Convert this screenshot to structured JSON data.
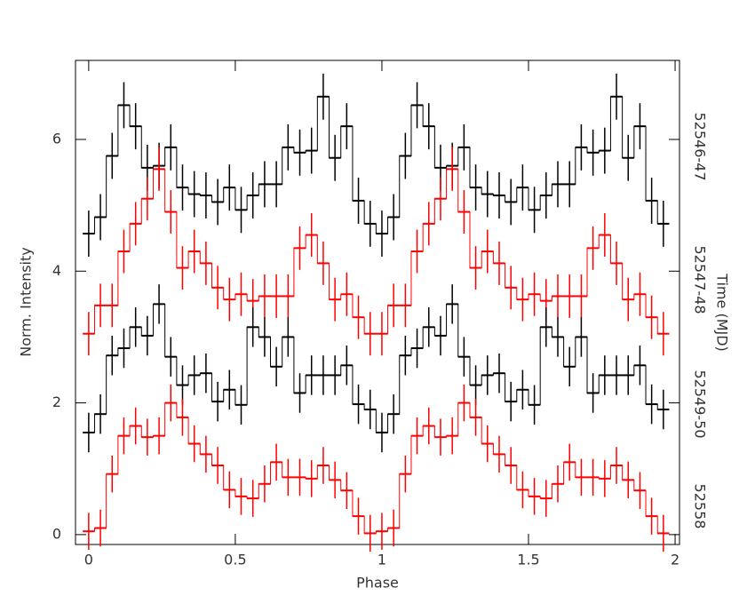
{
  "chart_data": {
    "type": "step",
    "xlabel": "Phase",
    "ylabel": "Norm. Intensity",
    "y2label": "Time (MJD)",
    "x": [
      0,
      0.04,
      0.08,
      0.12,
      0.16,
      0.2,
      0.24,
      0.28,
      0.32,
      0.36,
      0.4,
      0.44,
      0.48,
      0.52,
      0.56,
      0.6,
      0.64,
      0.68,
      0.72,
      0.76,
      0.8,
      0.84,
      0.88,
      0.92,
      0.96,
      1,
      1.04,
      1.08,
      1.12,
      1.16,
      1.2,
      1.24,
      1.28,
      1.32,
      1.36,
      1.4,
      1.44,
      1.48,
      1.52,
      1.56,
      1.6,
      1.64,
      1.68,
      1.72,
      1.76,
      1.8,
      1.84,
      1.88,
      1.92,
      1.96
    ],
    "series": [
      {
        "name": "52546-47",
        "color": "#000000",
        "error": 0.35,
        "values": [
          4.57,
          4.82,
          5.75,
          6.52,
          6.2,
          5.57,
          5.6,
          5.88,
          5.27,
          5.17,
          5.15,
          5.05,
          5.27,
          4.93,
          5.15,
          5.32,
          5.32,
          5.88,
          5.8,
          5.83,
          6.65,
          5.72,
          6.2,
          5.07,
          4.72,
          4.57,
          4.82,
          5.75,
          6.52,
          6.2,
          5.57,
          5.6,
          5.88,
          5.27,
          5.17,
          5.15,
          5.05,
          5.27,
          4.93,
          5.15,
          5.32,
          5.32,
          5.88,
          5.8,
          5.83,
          6.65,
          5.72,
          6.2,
          5.07,
          4.72
        ]
      },
      {
        "name": "52547-48",
        "color": "#ff0000",
        "error": 0.33,
        "values": [
          3.05,
          3.48,
          3.48,
          4.3,
          4.72,
          5.1,
          5.55,
          4.9,
          4.05,
          4.3,
          4.12,
          3.75,
          3.57,
          3.65,
          3.55,
          3.62,
          3.62,
          3.62,
          4.35,
          4.55,
          4.12,
          3.57,
          3.65,
          3.3,
          3.05,
          3.05,
          3.48,
          3.48,
          4.3,
          4.72,
          5.1,
          5.55,
          4.9,
          4.05,
          4.3,
          4.12,
          3.75,
          3.57,
          3.65,
          3.55,
          3.62,
          3.62,
          3.62,
          4.35,
          4.55,
          4.12,
          3.57,
          3.65,
          3.3,
          3.05
        ]
      },
      {
        "name": "52549-50",
        "color": "#000000",
        "error": 0.3,
        "values": [
          1.55,
          1.83,
          2.72,
          2.83,
          3.15,
          3.02,
          3.5,
          2.7,
          2.27,
          2.42,
          2.45,
          2.02,
          2.2,
          1.97,
          3.15,
          3.0,
          2.55,
          3.0,
          2.15,
          2.42,
          2.42,
          2.42,
          2.57,
          1.98,
          1.9,
          1.55,
          1.83,
          2.72,
          2.83,
          3.15,
          3.02,
          3.5,
          2.7,
          2.27,
          2.42,
          2.45,
          2.02,
          2.2,
          1.97,
          3.15,
          3.0,
          2.55,
          3.0,
          2.15,
          2.42,
          2.42,
          2.42,
          2.57,
          1.98,
          1.9
        ]
      },
      {
        "name": "52558",
        "color": "#ff0000",
        "error": 0.28,
        "values": [
          0.05,
          0.1,
          0.92,
          1.5,
          1.65,
          1.48,
          1.5,
          2.0,
          1.78,
          1.38,
          1.22,
          1.05,
          0.68,
          0.58,
          0.55,
          0.77,
          1.1,
          0.87,
          0.87,
          0.85,
          1.05,
          0.83,
          0.67,
          0.28,
          0.02,
          0.05,
          0.1,
          0.92,
          1.5,
          1.65,
          1.48,
          1.5,
          2.0,
          1.78,
          1.38,
          1.22,
          1.05,
          0.68,
          0.58,
          0.55,
          0.77,
          1.1,
          0.87,
          0.87,
          0.85,
          1.05,
          0.83,
          0.67,
          0.28,
          0.02
        ]
      }
    ],
    "xlim": [
      -0.045,
      2.015
    ],
    "ylim": [
      -0.15,
      7.2
    ],
    "xticks": [
      0,
      0.5,
      1,
      1.5,
      2
    ],
    "yticks": [
      0,
      2,
      4,
      6
    ]
  }
}
